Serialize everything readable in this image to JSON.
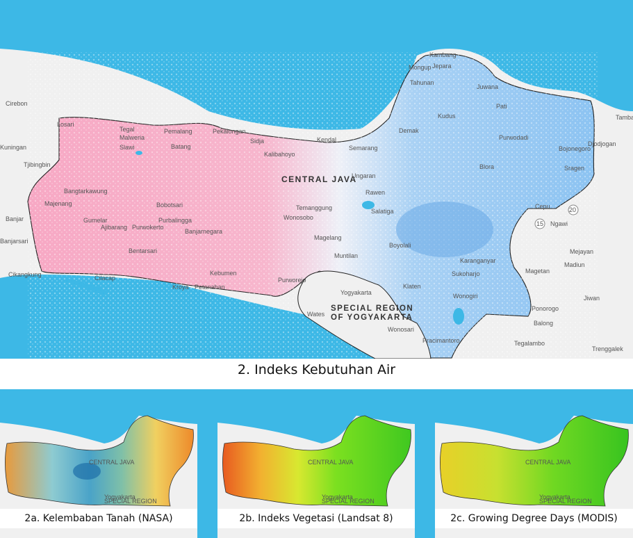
{
  "main_map": {
    "caption": "2. Indeks Kebutuhan Air",
    "region_title": "CENTRAL JAVA",
    "special_region_line1": "SPECIAL REGION",
    "special_region_line2": "OF YOGYAKARTA",
    "places": [
      "Cirebon",
      "Kuningan",
      "Tjibingbin",
      "Banjar",
      "Banjarsari",
      "Cikangkung",
      "Losari",
      "Tegal",
      "Malweria",
      "Slawi",
      "Pemalang",
      "Pekalongan",
      "Batang",
      "Sidja",
      "Kendal",
      "Kalibahoyo",
      "Semarang",
      "Ungaran",
      "Rawen",
      "Salatiga",
      "Boyolali",
      "Klaten",
      "Wonogiri",
      "Jepara",
      "Mongup",
      "Tahunan",
      "Kambang",
      "Kudus",
      "Pati",
      "Juwana",
      "Demak",
      "Purwodadi",
      "Blora",
      "Cepu",
      "Sragen",
      "Karanganyar",
      "Sukoharjo",
      "Wonosobo",
      "Temanggung",
      "Magelang",
      "Muntilan",
      "Purworejo",
      "Kebumen",
      "Petanahan",
      "Cilacap",
      "Majenang",
      "Gumelar",
      "Ajibarang",
      "Purwokerto",
      "Bobotsari",
      "Purbalingga",
      "Banjarnegara",
      "Bentarsari",
      "Kroya",
      "Bangtarkawung",
      "Yogyakarta",
      "Wates",
      "Wonosari",
      "Pracimantoro",
      "Ngawi",
      "Mejayan",
      "Madiun",
      "Magetan",
      "Ponorogo",
      "Balong",
      "Tegalambo",
      "Trenggalek",
      "Djodjogan",
      "Tambak",
      "Bojonegoro",
      "Jiwan"
    ],
    "route_shields": [
      "15",
      "20"
    ]
  },
  "insets": [
    {
      "caption": "2a. Kelembaban Tanah (NASA)",
      "label": "CENTRAL JAVA",
      "sublabel_1": "Yogyakarta",
      "sublabel_2": "SPECIAL REGION"
    },
    {
      "caption": "2b. Indeks Vegetasi (Landsat 8)",
      "label": "CENTRAL JAVA",
      "sublabel_1": "Yogyakarta",
      "sublabel_2": "SPECIAL REGION"
    },
    {
      "caption": "2c. Growing Degree Days (MODIS)",
      "label": "CENTRAL JAVA",
      "sublabel_1": "Yogyakarta",
      "sublabel_2": "SPECIAL REGION"
    }
  ],
  "colors": {
    "sea": "#3db8e6",
    "land": "#f0f0f0",
    "high_need": "#f7a8c4",
    "low_need": "#8cc3f2"
  }
}
